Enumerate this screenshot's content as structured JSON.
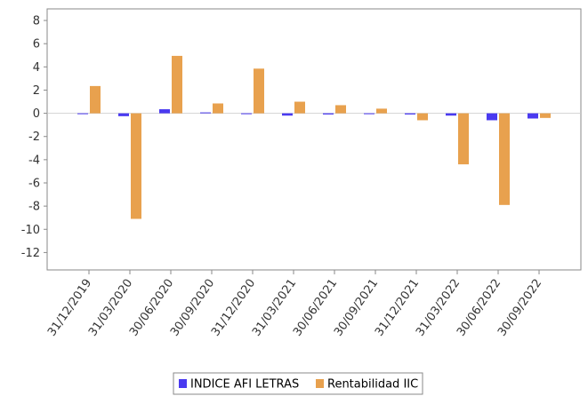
{
  "chart_data": {
    "type": "bar",
    "categories": [
      "31/12/2019",
      "31/03/2020",
      "30/06/2020",
      "30/09/2020",
      "31/12/2020",
      "31/03/2021",
      "30/06/2021",
      "30/09/2021",
      "31/12/2021",
      "31/03/2022",
      "30/06/2022",
      "30/09/2022"
    ],
    "series": [
      {
        "name": "INDICE AFI LETRAS",
        "color": "#4a3af0",
        "values": [
          -0.05,
          -0.25,
          0.35,
          0.0,
          -0.05,
          -0.2,
          -0.1,
          -0.05,
          -0.1,
          -0.2,
          -0.6,
          -0.45
        ]
      },
      {
        "name": "Rentabilidad IIC",
        "color": "#e8a14e",
        "values": [
          2.35,
          -9.1,
          4.95,
          0.85,
          3.85,
          1.0,
          0.7,
          0.4,
          -0.6,
          -4.4,
          -7.9,
          -0.4
        ]
      }
    ],
    "ylim": [
      -13.5,
      9
    ],
    "yticks": [
      "8",
      "6",
      "4",
      "2",
      "0",
      "-2",
      "-4",
      "-6",
      "-8",
      "-10",
      "-12"
    ],
    "title": "",
    "xlabel": "",
    "ylabel": "",
    "grid": false,
    "legend_position": "bottom-center"
  }
}
